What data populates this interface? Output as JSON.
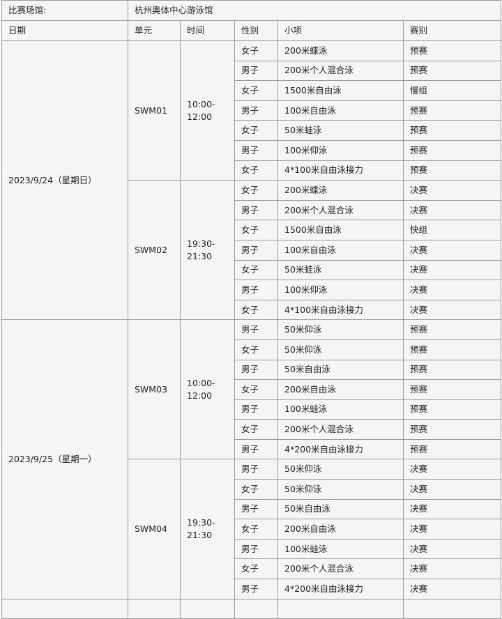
{
  "venue": {
    "label": "比赛场馆:",
    "value": "杭州奥体中心游泳馆"
  },
  "headers": [
    "日期",
    "单元",
    "时间",
    "性别",
    "小项",
    "赛别"
  ],
  "days": [
    {
      "date": "2023/9/24（星期日）",
      "sessions": [
        {
          "unit": "SWM01",
          "time": "10:00-12:00",
          "events": [
            [
              "女子",
              "200米蝶泳",
              "预赛"
            ],
            [
              "男子",
              "200米个人混合泳",
              "预赛"
            ],
            [
              "女子",
              "1500米自由泳",
              "慢组"
            ],
            [
              "男子",
              "100米自由泳",
              "预赛"
            ],
            [
              "女子",
              "50米蛙泳",
              "预赛"
            ],
            [
              "男子",
              "100米仰泳",
              "预赛"
            ],
            [
              "女子",
              "4*100米自由泳接力",
              "预赛"
            ]
          ]
        },
        {
          "unit": "SWM02",
          "time": "19:30-21:30",
          "events": [
            [
              "女子",
              "200米蝶泳",
              "决赛"
            ],
            [
              "男子",
              "200米个人混合泳",
              "决赛"
            ],
            [
              "女子",
              "1500米自由泳",
              "快组"
            ],
            [
              "男子",
              "100米自由泳",
              "决赛"
            ],
            [
              "女子",
              "50米蛙泳",
              "决赛"
            ],
            [
              "男子",
              "100米仰泳",
              "决赛"
            ],
            [
              "女子",
              "4*100米自由泳接力",
              "决赛"
            ]
          ]
        }
      ]
    },
    {
      "date": "2023/9/25（星期一）",
      "sessions": [
        {
          "unit": "SWM03",
          "time": "10:00-12:00",
          "events": [
            [
              "男子",
              "50米仰泳",
              "预赛"
            ],
            [
              "女子",
              "50米仰泳",
              "预赛"
            ],
            [
              "男子",
              "50米自由泳",
              "预赛"
            ],
            [
              "女子",
              "200米自由泳",
              "预赛"
            ],
            [
              "男子",
              "100米蛙泳",
              "预赛"
            ],
            [
              "女子",
              "200米个人混合泳",
              "预赛"
            ],
            [
              "男子",
              "4*200米自由泳接力",
              "预赛"
            ]
          ]
        },
        {
          "unit": "SWM04",
          "time": "19:30-21:30",
          "events": [
            [
              "男子",
              "50米仰泳",
              "决赛"
            ],
            [
              "女子",
              "50米仰泳",
              "决赛"
            ],
            [
              "男子",
              "50米自由泳",
              "决赛"
            ],
            [
              "女子",
              "200米自由泳",
              "决赛"
            ],
            [
              "男子",
              "100米蛙泳",
              "决赛"
            ],
            [
              "女子",
              "200米个人混合泳",
              "决赛"
            ],
            [
              "男子",
              "4*200米自由泳接力",
              "决赛"
            ]
          ]
        }
      ]
    }
  ]
}
